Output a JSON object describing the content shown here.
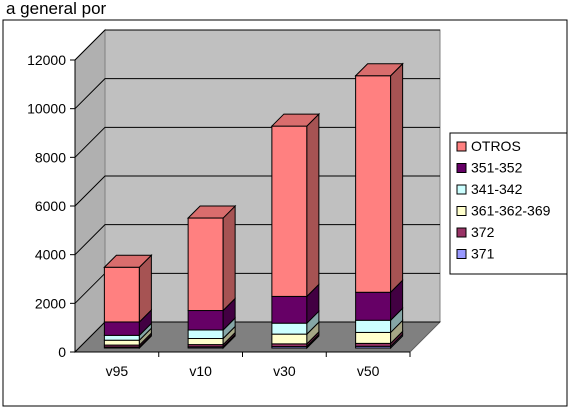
{
  "title_fragment": "a general por",
  "chart_data": {
    "type": "bar",
    "stacked": true,
    "three_d": true,
    "categories": [
      "v95",
      "v10",
      "v30",
      "v50"
    ],
    "series": [
      {
        "name": "371",
        "color": "#9999ff",
        "values": [
          40,
          50,
          60,
          70
        ]
      },
      {
        "name": "372",
        "color": "#993366",
        "values": [
          80,
          90,
          110,
          120
        ]
      },
      {
        "name": "361-362-369",
        "color": "#ffffcc",
        "values": [
          200,
          250,
          400,
          450
        ]
      },
      {
        "name": "341-342",
        "color": "#ccffff",
        "values": [
          200,
          350,
          450,
          500
        ]
      },
      {
        "name": "351-352",
        "color": "#660066",
        "values": [
          550,
          800,
          1100,
          1150
        ]
      },
      {
        "name": "OTROS",
        "color": "#ff8080",
        "values": [
          2250,
          3800,
          7000,
          8900
        ]
      }
    ],
    "legend_order": [
      "OTROS",
      "351-352",
      "341-342",
      "361-362-369",
      "372",
      "371"
    ],
    "legend_position": "right",
    "y_ticks": [
      0,
      2000,
      4000,
      6000,
      8000,
      10000,
      12000
    ],
    "ylim": [
      0,
      12000
    ],
    "grid": true,
    "wall_color": "#c0c0c0",
    "floor_color": "#808080"
  }
}
